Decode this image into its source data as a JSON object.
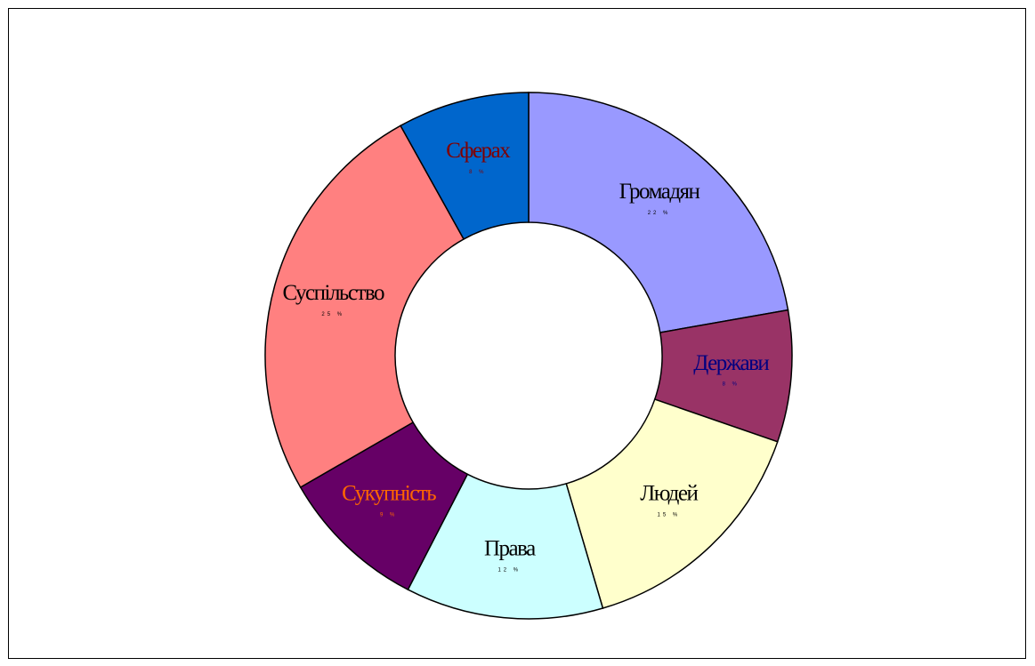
{
  "chart_data": {
    "type": "donut",
    "categories": [
      "Громадян",
      "Держави",
      "Людей",
      "Права",
      "Сукупність",
      "Суспільство",
      "Сферах"
    ],
    "values": [
      22,
      8,
      15,
      12,
      9,
      25,
      8
    ],
    "value_labels": [
      "22 %",
      "8 %",
      "15 %",
      "12 %",
      "9 %",
      "25 %",
      "8 %"
    ],
    "colors": [
      "#9999ff",
      "#993366",
      "#ffffcc",
      "#ccffff",
      "#660066",
      "#ff8080",
      "#0066cc"
    ],
    "label_colors": [
      "#000000",
      "#000080",
      "#000000",
      "#000000",
      "#ff6600",
      "#000000",
      "#800000"
    ]
  }
}
